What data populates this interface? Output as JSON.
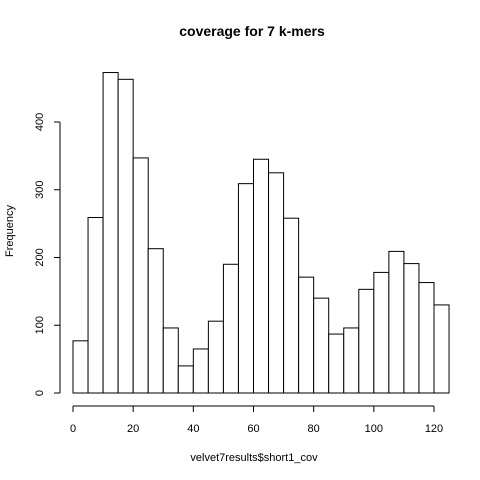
{
  "chart_data": {
    "type": "bar",
    "title": "coverage for 7 k-mers",
    "xlabel": "velvet7results$short1_cov",
    "ylabel": "Frequency",
    "bin_width": 5,
    "bin_starts": [
      0,
      5,
      10,
      15,
      20,
      25,
      30,
      35,
      40,
      45,
      50,
      55,
      60,
      65,
      70,
      75,
      80,
      85,
      90,
      95,
      100,
      105,
      110,
      115,
      120
    ],
    "values": [
      77,
      259,
      473,
      463,
      347,
      213,
      96,
      40,
      65,
      106,
      190,
      309,
      345,
      325,
      258,
      171,
      140,
      87,
      96,
      153,
      178,
      209,
      191,
      163,
      130
    ],
    "xlim": [
      0,
      125
    ],
    "ylim": [
      0,
      480
    ],
    "x_ticks": [
      0,
      20,
      40,
      60,
      80,
      100,
      120
    ],
    "y_ticks": [
      0,
      100,
      200,
      300,
      400
    ],
    "grid": false
  }
}
